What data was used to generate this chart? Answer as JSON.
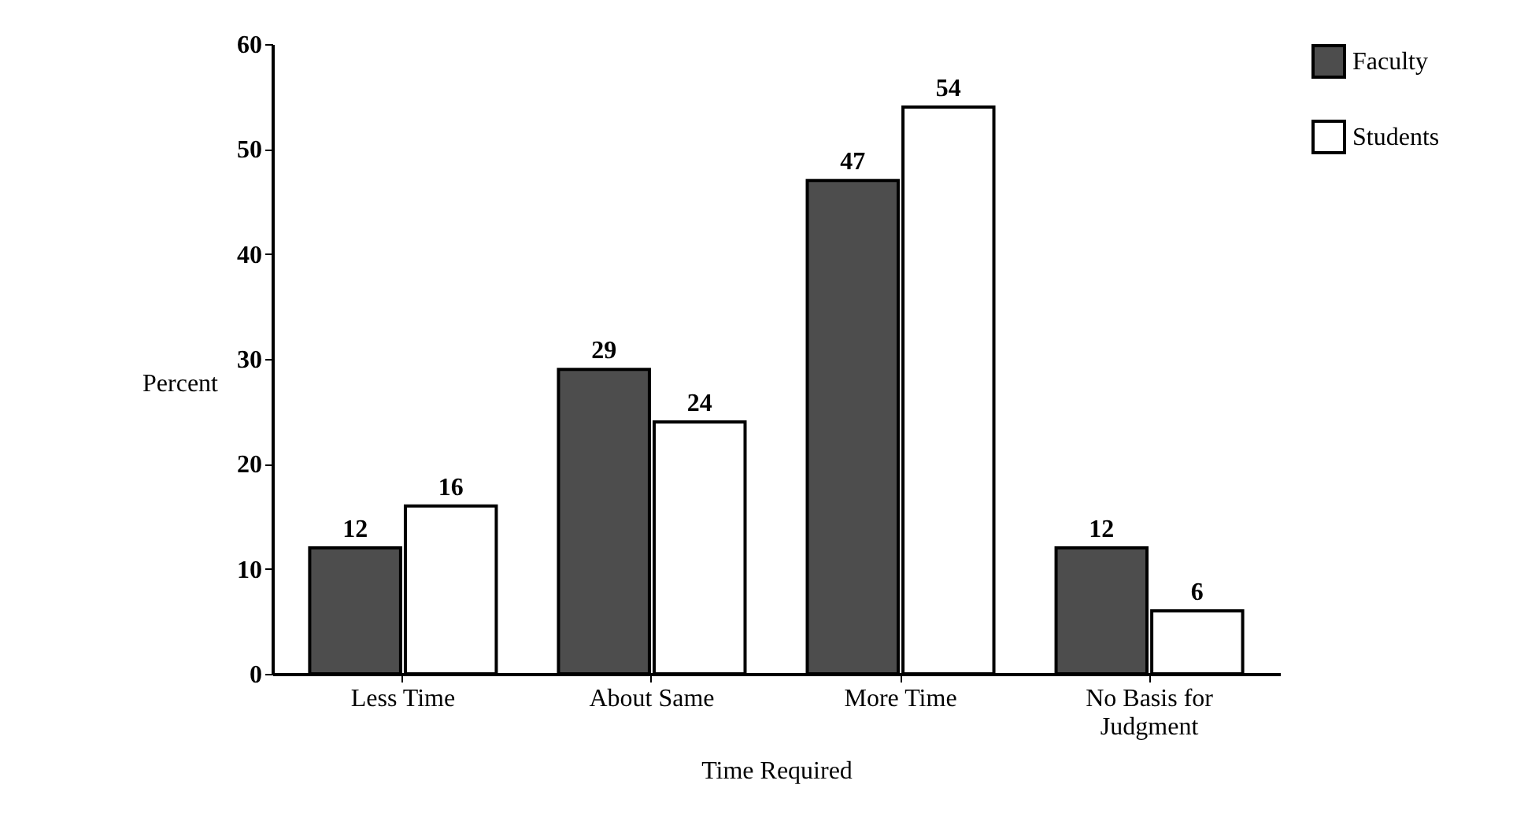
{
  "chart_data": {
    "type": "bar",
    "xlabel": "Time Required",
    "ylabel": "Percent",
    "categories": [
      "Less Time",
      "About Same",
      "More Time",
      "No Basis for Judgment"
    ],
    "series": [
      {
        "name": "Faculty",
        "color": "#4d4d4d",
        "values": [
          12,
          29,
          47,
          12
        ]
      },
      {
        "name": "Students",
        "color": "#ffffff",
        "values": [
          16,
          24,
          54,
          6
        ]
      }
    ],
    "ylim": [
      0,
      60
    ],
    "yticks": [
      0,
      10,
      20,
      30,
      40,
      50,
      60
    ],
    "grid": false,
    "legend": "right",
    "data_labels": true
  }
}
